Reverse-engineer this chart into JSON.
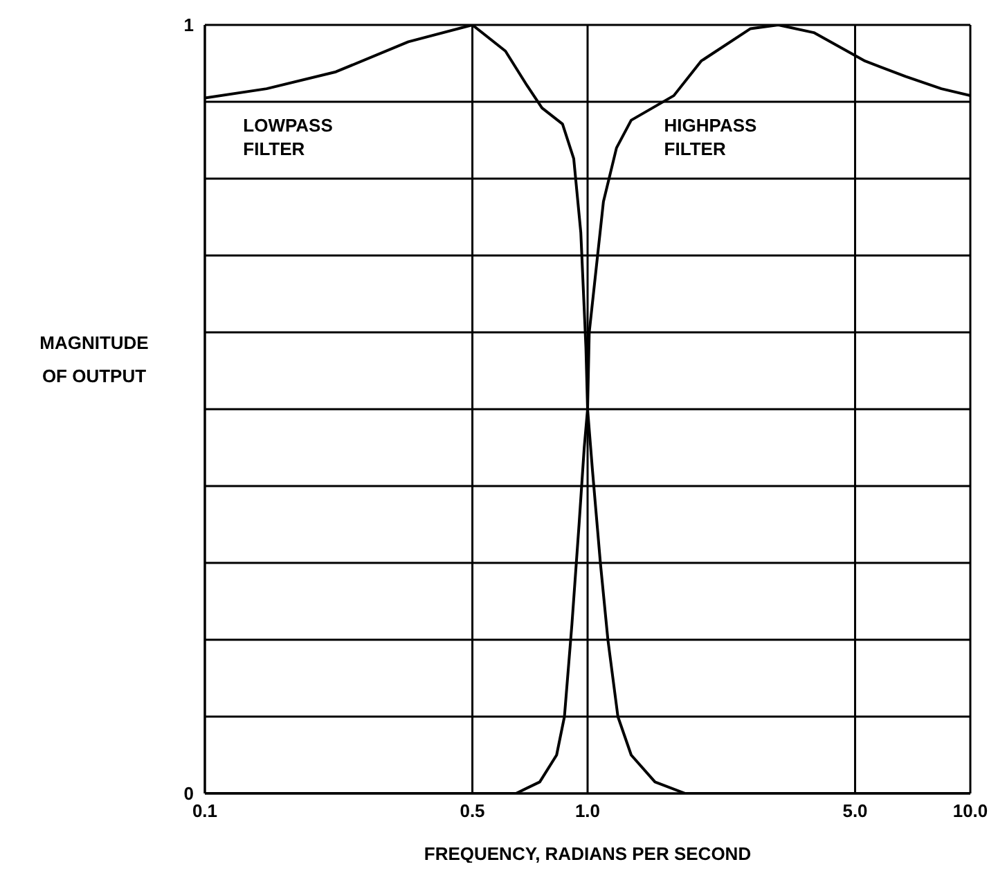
{
  "chart_data": {
    "type": "line",
    "xlabel": "FREQUENCY, RADIANS PER SECOND",
    "ylabel": "MAGNITUDE OF OUTPUT",
    "log": "x",
    "xlim": [
      0.1,
      10
    ],
    "xticks": [
      {
        "value": 0.1,
        "label": "0.1"
      },
      {
        "value": 0.5,
        "label": "0.5"
      },
      {
        "value": 1,
        "label": "1.0"
      },
      {
        "value": 5,
        "label": "5.0"
      },
      {
        "value": 10,
        "label": "10.0"
      }
    ],
    "ylim": [
      0,
      1
    ],
    "yticks": [
      0,
      {
        "value": 0.1,
        "label": null
      },
      {
        "value": 0.2,
        "label": null
      },
      {
        "value": 0.3,
        "label": null
      },
      {
        "value": 0.4,
        "label": null
      },
      {
        "value": 0.5,
        "label": null
      },
      {
        "value": 0.6,
        "label": null
      },
      {
        "value": 0.7,
        "label": null
      },
      {
        "value": 0.8,
        "label": null
      },
      {
        "value": 0.9,
        "label": null
      },
      1
    ],
    "grid": true,
    "legend": false,
    "marker": "none",
    "line_style": "solid",
    "series": [
      {
        "name": "LOWPASS FILTER",
        "color": "#000000",
        "x": [
          0.1,
          0.145,
          0.22,
          0.34,
          0.5,
          0.61,
          0.695,
          0.76,
          0.86,
          0.92,
          0.96,
          0.99,
          1.0,
          1.03,
          1.08,
          1.13,
          1.2,
          1.3,
          1.5,
          1.8,
          10
        ],
        "values": [
          0.905,
          0.917,
          0.939,
          0.978,
          1.0,
          0.966,
          0.921,
          0.892,
          0.871,
          0.826,
          0.73,
          0.58,
          0.5,
          0.42,
          0.3,
          0.2,
          0.1,
          0.05,
          0.015,
          0,
          0
        ]
      },
      {
        "name": "HIGHPASS FILTER",
        "color": "#000000",
        "x": [
          0.1,
          0.65,
          0.75,
          0.83,
          0.87,
          0.91,
          0.95,
          0.98,
          1.0,
          1.01,
          1.1,
          1.19,
          1.3,
          1.68,
          1.98,
          2.66,
          3.15,
          3.9,
          5.31,
          6.77,
          8.4,
          10
        ],
        "values": [
          0,
          0,
          0.015,
          0.05,
          0.1,
          0.22,
          0.35,
          0.45,
          0.5,
          0.6,
          0.77,
          0.84,
          0.876,
          0.908,
          0.953,
          0.995,
          1.0,
          0.99,
          0.953,
          0.933,
          0.917,
          0.908
        ]
      }
    ]
  }
}
